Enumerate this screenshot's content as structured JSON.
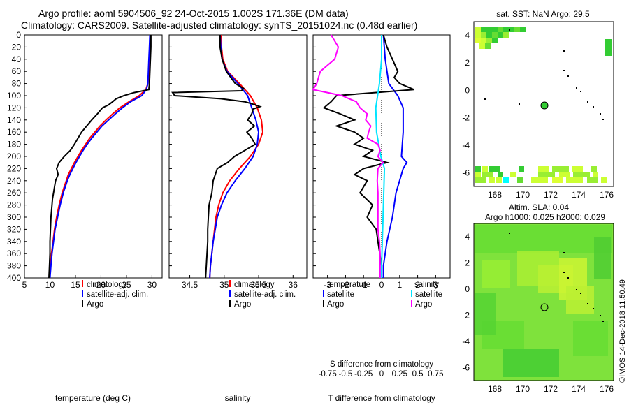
{
  "title_line1": "Argo profile: aoml 5904506_92 24-Oct-2015 1.002S 171.36E (DM data)",
  "title_line2": "Climatology: CARS2009. Satellite-adjusted climatology: synTS_20151024.nc (0.48d earlier)",
  "sst_title": "sat. SST: NaN Argo: 29.5",
  "altim_title1": "Altim. SLA: 0.04",
  "altim_title2": "Argo h1000: 0.025 h2000: 0.029",
  "credit": "©IMOS 14-Dec-2018 11:50:49",
  "colors": {
    "climatology": "#ff0000",
    "satellite": "#0000ff",
    "argo": "#000000",
    "sat_s": "#00e5ff",
    "argo_s": "#ff00ff"
  },
  "chart_data": [
    {
      "type": "line",
      "name": "temperature",
      "xlabel": "temperature (deg C)",
      "xlim": [
        5,
        32
      ],
      "ylim": [
        0,
        400
      ],
      "xticks": [
        "5",
        "10",
        "15",
        "20",
        "25",
        "30"
      ],
      "yticks": [
        "0",
        "20",
        "40",
        "60",
        "80",
        "100",
        "120",
        "140",
        "160",
        "180",
        "200",
        "220",
        "240",
        "260",
        "280",
        "300",
        "320",
        "340",
        "360",
        "380",
        "400"
      ],
      "legend": [
        "climatology",
        "satellite-adj. clim.",
        "Argo"
      ],
      "series": [
        {
          "name": "climatology",
          "color": "#ff0000",
          "depth": [
            0,
            20,
            40,
            60,
            80,
            90,
            100,
            110,
            120,
            130,
            140,
            150,
            160,
            170,
            180,
            190,
            200,
            210,
            220,
            230,
            240,
            250,
            260,
            280,
            300,
            320,
            340,
            360,
            380,
            400
          ],
          "values": [
            29.7,
            29.6,
            29.5,
            29.4,
            29.2,
            28.8,
            27.5,
            25.5,
            23.7,
            22.3,
            21.0,
            19.8,
            18.8,
            17.8,
            17.0,
            16.2,
            15.5,
            14.8,
            14.2,
            13.6,
            13.2,
            12.8,
            12.4,
            11.8,
            11.3,
            10.9,
            10.6,
            10.3,
            10.1,
            9.9
          ]
        },
        {
          "name": "satellite-adj. clim.",
          "color": "#0000ff",
          "depth": [
            0,
            20,
            40,
            60,
            80,
            90,
            100,
            110,
            120,
            130,
            140,
            150,
            160,
            170,
            180,
            190,
            200,
            210,
            220,
            230,
            240,
            250,
            260,
            280,
            300,
            320,
            340,
            360,
            380,
            400
          ],
          "values": [
            29.6,
            29.5,
            29.4,
            29.3,
            29.2,
            28.9,
            28.0,
            25.8,
            24.2,
            22.8,
            21.5,
            20.2,
            19.2,
            18.2,
            17.3,
            16.5,
            15.8,
            15.1,
            14.5,
            13.9,
            13.4,
            13.0,
            12.6,
            12.0,
            11.5,
            11.0,
            10.7,
            10.4,
            10.2,
            10.0
          ]
        },
        {
          "name": "Argo",
          "color": "#000000",
          "depth": [
            0,
            20,
            40,
            60,
            80,
            90,
            95,
            100,
            105,
            110,
            115,
            120,
            130,
            140,
            150,
            160,
            170,
            180,
            190,
            200,
            210,
            220,
            230,
            240,
            250,
            260,
            270,
            280,
            290,
            300,
            320,
            340,
            360,
            380,
            400
          ],
          "values": [
            29.8,
            29.8,
            29.7,
            29.6,
            29.5,
            29.4,
            26.5,
            24.5,
            23.0,
            22.3,
            21.5,
            20.3,
            19.3,
            18.2,
            17.2,
            16.2,
            15.5,
            14.8,
            14.0,
            12.8,
            11.8,
            11.3,
            11.6,
            11.1,
            10.9,
            10.7,
            10.5,
            10.4,
            10.3,
            10.2,
            10.1,
            10.0,
            10.0,
            9.9,
            9.8
          ]
        }
      ]
    },
    {
      "type": "line",
      "name": "salinity",
      "xlabel": "salinity",
      "xlim": [
        34.2,
        36.2
      ],
      "ylim": [
        0,
        400
      ],
      "xticks": [
        "34.5",
        "35",
        "35.5",
        "36"
      ],
      "legend": [
        "climatology",
        "satellite-adj. clim.",
        "Argo"
      ],
      "series": [
        {
          "name": "climatology",
          "color": "#ff0000",
          "depth": [
            0,
            20,
            40,
            60,
            80,
            100,
            120,
            140,
            160,
            180,
            200,
            220,
            240,
            260,
            280,
            300,
            320,
            340,
            360,
            380,
            400
          ],
          "values": [
            34.95,
            34.96,
            34.98,
            35.05,
            35.22,
            35.38,
            35.48,
            35.54,
            35.56,
            35.5,
            35.38,
            35.22,
            35.08,
            34.98,
            34.92,
            34.88,
            34.86,
            34.84,
            34.82,
            34.8,
            34.79
          ]
        },
        {
          "name": "satellite-adj. clim.",
          "color": "#0000ff",
          "depth": [
            0,
            20,
            40,
            60,
            80,
            100,
            120,
            140,
            160,
            180,
            200,
            220,
            240,
            260,
            280,
            300,
            320,
            340,
            360,
            380,
            400
          ],
          "values": [
            34.94,
            34.95,
            34.97,
            35.04,
            35.2,
            35.34,
            35.4,
            35.46,
            35.5,
            35.48,
            35.42,
            35.3,
            35.16,
            35.04,
            34.96,
            34.9,
            34.87,
            34.84,
            34.82,
            34.8,
            34.79
          ]
        },
        {
          "name": "Argo",
          "color": "#000000",
          "depth": [
            0,
            10,
            20,
            40,
            60,
            80,
            88,
            92,
            95,
            100,
            105,
            110,
            115,
            118,
            122,
            130,
            140,
            150,
            160,
            170,
            180,
            190,
            200,
            210,
            220,
            230,
            240,
            260,
            280,
            300,
            320,
            340,
            360,
            380,
            400
          ],
          "values": [
            34.94,
            34.94,
            34.94,
            34.97,
            35.03,
            35.16,
            35.28,
            35.25,
            34.25,
            34.28,
            34.95,
            35.3,
            35.45,
            35.52,
            35.42,
            35.4,
            35.34,
            35.44,
            35.33,
            35.4,
            35.45,
            35.3,
            35.15,
            35.05,
            34.9,
            34.87,
            34.84,
            34.82,
            34.78,
            34.77,
            34.76,
            34.76,
            34.75,
            34.74,
            34.73
          ]
        }
      ]
    },
    {
      "type": "line",
      "name": "differences",
      "xlabel": "T difference from climatology",
      "xlim": [
        -3.8,
        3.8
      ],
      "ylim": [
        0,
        400
      ],
      "xticks": [
        "-3",
        "-2",
        "-1",
        "0",
        "1",
        "2",
        "3"
      ],
      "s_axis_label": "S difference from climatology",
      "s_xticks": [
        "-0.75",
        "-0.5",
        "-0.25",
        "0",
        "0.25",
        "0.5",
        "0.75"
      ],
      "legend_temperature": {
        "heading": "temperature",
        "items": [
          "satellite",
          "Argo"
        ]
      },
      "legend_salinity": {
        "heading": "salinity",
        "items": [
          "satellite",
          "Argo"
        ]
      },
      "series": [
        {
          "name": "T satellite",
          "color": "#0000ff",
          "depth": [
            0,
            40,
            80,
            100,
            120,
            160,
            200,
            210,
            220,
            260,
            300,
            340,
            380,
            400
          ],
          "values": [
            0.1,
            0.2,
            0.4,
            0.9,
            1.2,
            1.2,
            1.1,
            1.4,
            1.2,
            0.8,
            0.6,
            0.3,
            0.1,
            0.1
          ]
        },
        {
          "name": "T Argo",
          "color": "#000000",
          "depth": [
            0,
            20,
            40,
            60,
            70,
            80,
            90,
            100,
            110,
            120,
            130,
            140,
            150,
            160,
            170,
            180,
            190,
            200,
            210,
            220,
            230,
            240,
            260,
            280,
            300,
            320,
            340,
            360,
            380,
            400
          ],
          "values": [
            0.1,
            0.3,
            0.6,
            0.9,
            0.7,
            1.0,
            1.8,
            -2.5,
            -2.8,
            -3.2,
            -2.3,
            -1.5,
            -2.5,
            -1.5,
            -1.0,
            -1.5,
            -0.5,
            -1.0,
            0.3,
            -1.0,
            -1.5,
            -0.8,
            -1.2,
            -0.5,
            -0.8,
            -0.3,
            -0.2,
            -0.1,
            0.0,
            0.0
          ]
        },
        {
          "name": "S satellite",
          "color": "#00e5ff",
          "depth": [
            0,
            40,
            80,
            120,
            160,
            200,
            220,
            260,
            300,
            340,
            380,
            400
          ],
          "values": [
            0.0,
            0.0,
            -0.03,
            -0.08,
            -0.07,
            -0.01,
            0.04,
            0.03,
            0.02,
            0.01,
            0.0,
            0.0
          ]
        },
        {
          "name": "S Argo",
          "color": "#ff00ff",
          "depth": [
            0,
            20,
            40,
            60,
            80,
            90,
            95,
            100,
            105,
            110,
            120,
            130,
            140,
            150,
            160,
            170,
            180,
            190,
            200,
            210,
            220,
            240,
            260,
            280,
            300,
            320,
            340,
            360,
            380,
            400
          ],
          "values": [
            -0.7,
            -0.6,
            -0.65,
            -0.85,
            -0.9,
            -0.95,
            -0.75,
            -0.55,
            -0.45,
            -0.35,
            -0.3,
            -0.2,
            -0.22,
            -0.15,
            -0.18,
            -0.2,
            -0.05,
            -0.02,
            -0.05,
            0.02,
            -0.05,
            -0.06,
            -0.05,
            -0.05,
            -0.05,
            -0.05,
            -0.03,
            -0.02,
            -0.02,
            -0.02
          ]
        }
      ]
    },
    {
      "type": "heatmap",
      "name": "sst-map",
      "title": "sat. SST: NaN Argo: 29.5",
      "xlim": [
        166.5,
        176.5
      ],
      "ylim": [
        -7,
        5
      ],
      "xticks": [
        "168",
        "170",
        "172",
        "174",
        "176"
      ],
      "yticks": [
        "4",
        "2",
        "0",
        "-2",
        "-4",
        "-6"
      ],
      "argo_position": {
        "lon": 171.36,
        "lat": -1.0
      }
    },
    {
      "type": "heatmap",
      "name": "sla-map",
      "title": "Altim. SLA: 0.04",
      "xlim": [
        166.5,
        176.5
      ],
      "ylim": [
        -7,
        5
      ],
      "xticks": [
        "168",
        "170",
        "172",
        "174",
        "176"
      ],
      "yticks": [
        "4",
        "2",
        "0",
        "-2",
        "-4",
        "-6"
      ],
      "argo_position": {
        "lon": 171.36,
        "lat": -1.0
      }
    }
  ]
}
